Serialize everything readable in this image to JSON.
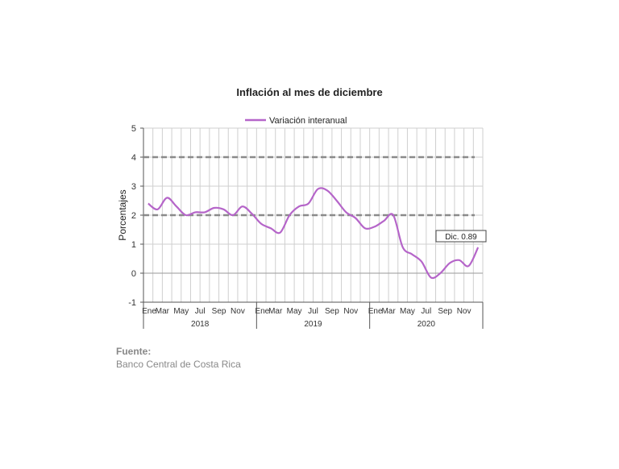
{
  "chart_data": {
    "type": "line",
    "title": "Inflación al mes de diciembre",
    "ylabel": "Porcentajes",
    "xlabel": "",
    "ylim": [
      -1,
      5
    ],
    "yticks": [
      -1,
      0,
      1,
      2,
      3,
      4,
      5
    ],
    "grid": true,
    "legend": "top-center",
    "years": [
      "2018",
      "2019",
      "2020"
    ],
    "month_tick_labels": [
      "Ene",
      "",
      "Mar",
      "",
      "May",
      "",
      "Jul",
      "",
      "Sep",
      "",
      "Nov",
      ""
    ],
    "reference_lines": [
      2,
      4
    ],
    "series": [
      {
        "name": "Variación interanual",
        "color": "#b565c9",
        "values": [
          2.4,
          2.2,
          2.6,
          2.3,
          2.0,
          2.1,
          2.1,
          2.25,
          2.2,
          2.0,
          2.3,
          2.05,
          1.7,
          1.55,
          1.4,
          2.0,
          2.3,
          2.4,
          2.9,
          2.85,
          2.5,
          2.1,
          1.9,
          1.55,
          1.6,
          1.8,
          2.0,
          0.9,
          0.65,
          0.4,
          -0.15,
          0.0,
          0.35,
          0.45,
          0.25,
          0.89
        ]
      }
    ],
    "annotation": "Dic. 0.89"
  },
  "source": {
    "label": "Fuente:",
    "value": "Banco Central de Costa Rica"
  }
}
